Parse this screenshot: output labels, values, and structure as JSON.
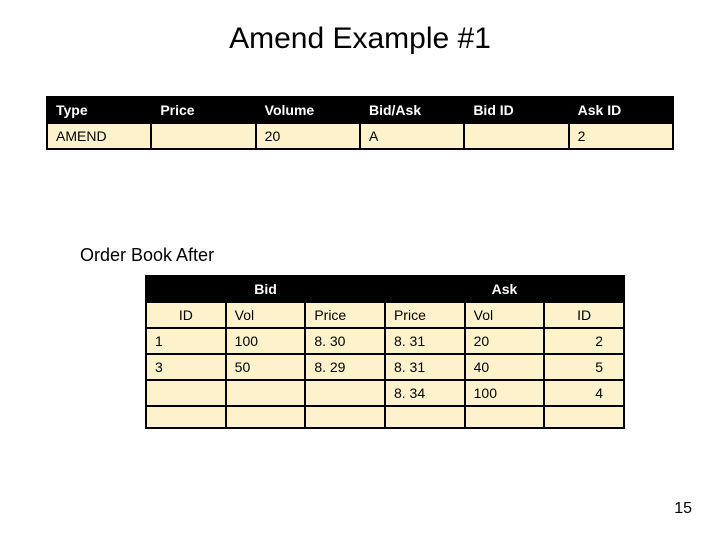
{
  "title": "Amend Example #1",
  "slide_number": "15",
  "colors": {
    "header_bg": "#000000",
    "header_fg": "#ffffff",
    "cream_bg": "#fdf2cc",
    "border": "#000000",
    "page_bg": "#ffffff",
    "text": "#000000"
  },
  "amend_table": {
    "columns": [
      "Type",
      "Price",
      "Volume",
      "Bid/Ask",
      "Bid ID",
      "Ask ID"
    ],
    "row": {
      "type": "AMEND",
      "price": "",
      "volume": "20",
      "bidask": "A",
      "bidid": "",
      "askid": "2"
    }
  },
  "section_label": "Order Book  After",
  "order_book": {
    "group_headers": {
      "bid": "Bid",
      "ask": "Ask"
    },
    "columns": {
      "id_bid": "ID",
      "vol_bid": "Vol",
      "price_bid": "Price",
      "price_ask": "Price",
      "vol_ask": "Vol",
      "id_ask": "ID"
    },
    "rows": [
      {
        "id_bid": "1",
        "vol_bid": "100",
        "price_bid": "8. 30",
        "price_ask": "8. 31",
        "vol_ask": "20",
        "id_ask": "2"
      },
      {
        "id_bid": "3",
        "vol_bid": "50",
        "price_bid": "8. 29",
        "price_ask": "8. 31",
        "vol_ask": "40",
        "id_ask": "5"
      },
      {
        "id_bid": "",
        "vol_bid": "",
        "price_bid": "",
        "price_ask": "8. 34",
        "vol_ask": "100",
        "id_ask": "4"
      },
      {
        "id_bid": "",
        "vol_bid": "",
        "price_bid": "",
        "price_ask": "",
        "vol_ask": "",
        "id_ask": ""
      }
    ]
  }
}
